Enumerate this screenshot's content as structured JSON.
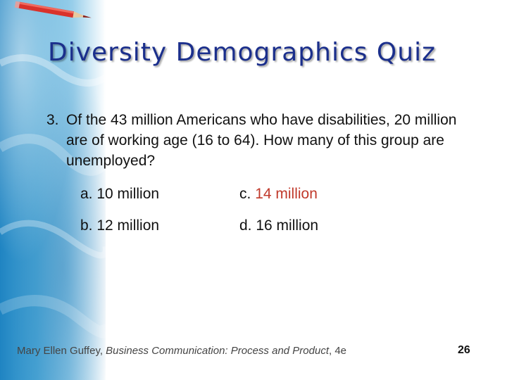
{
  "slide": {
    "title": "Diversity Demographics Quiz",
    "question": {
      "number": "3.",
      "text": "Of the 43 million Americans who have disabilities, 20 million are of working age (16 to 64). How many of this group are unemployed?"
    },
    "answers": [
      {
        "letter": "a.",
        "value": "10 million",
        "highlighted": false
      },
      {
        "letter": "c.",
        "value": "14 million",
        "highlighted": true
      },
      {
        "letter": "b.",
        "value": "12 million",
        "highlighted": false
      },
      {
        "letter": "d.",
        "value": "16 million",
        "highlighted": false
      }
    ],
    "footer": {
      "author": "Mary Ellen Guffey, ",
      "book": "Business Communication: Process and Product",
      "edition": ", 4e"
    },
    "page_number": "26"
  },
  "colors": {
    "title": "#1b2f8c",
    "highlight": "#c0392b",
    "band": "#1f84c2"
  }
}
